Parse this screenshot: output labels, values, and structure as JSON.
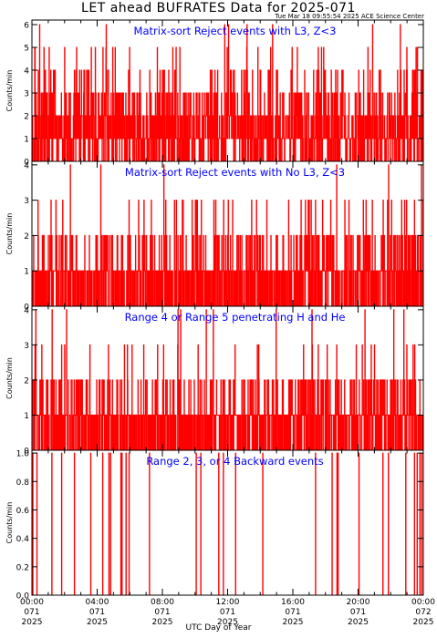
{
  "title": "LET ahead BUFRATES Data for 2025-071",
  "timestamp": "Tue Mar 18 09:55:54 2025 ACE Science Center",
  "xlabel": "UTC Day of Year",
  "colors": {
    "series": "#ff0000",
    "panel_title": "#0000ff",
    "axes": "#000000"
  },
  "chart_data": [
    {
      "type": "line",
      "title": "Matrix-sort Reject events with L3, Z<3",
      "ylabel": "Counts/min",
      "ylim": [
        0,
        6.2
      ],
      "yticks": [
        0,
        1,
        2,
        3,
        4,
        5,
        6
      ],
      "ytick_labels": [
        "0",
        "1",
        "2",
        "3",
        "4",
        "5",
        "6"
      ],
      "xlim": [
        0,
        1440
      ],
      "series": [
        {
          "x_step_minutes": 1,
          "distribution": {
            "0": 0.25,
            "1": 0.33,
            "2": 0.22,
            "3": 0.13,
            "4": 0.05,
            "5": 0.015,
            "6": 0.005
          }
        }
      ]
    },
    {
      "type": "line",
      "title": "Matrix-sort Reject events with No L3, Z<3",
      "ylabel": "Counts/min",
      "ylim": [
        0,
        4.1
      ],
      "yticks": [
        0,
        1,
        2,
        3,
        4
      ],
      "ytick_labels": [
        "0",
        "1",
        "2",
        "3",
        "4"
      ],
      "xlim": [
        0,
        1440
      ],
      "series": [
        {
          "x_step_minutes": 1,
          "distribution": {
            "0": 0.45,
            "1": 0.37,
            "2": 0.14,
            "3": 0.035,
            "4": 0.005
          }
        }
      ]
    },
    {
      "type": "line",
      "title": "Range 4 or Range 5 penetrating H and He",
      "ylabel": "Counts/min",
      "ylim": [
        0,
        4.1
      ],
      "yticks": [
        0,
        1,
        2,
        3,
        4
      ],
      "ytick_labels": [
        "0",
        "1",
        "2",
        "3",
        "4"
      ],
      "xlim": [
        0,
        1440
      ],
      "series": [
        {
          "x_step_minutes": 1,
          "distribution": {
            "0": 0.42,
            "1": 0.42,
            "2": 0.13,
            "3": 0.025,
            "4": 0.005
          }
        }
      ]
    },
    {
      "type": "line",
      "title": "Range 2, 3, or 4 Backward events",
      "ylabel": "Counts/min",
      "ylim": [
        0,
        1.02
      ],
      "yticks": [
        0,
        0.2,
        0.4,
        0.6,
        0.8,
        1.0
      ],
      "ytick_labels": [
        "0.0",
        "0.2",
        "0.4",
        "0.6",
        "0.8",
        "1.0"
      ],
      "xlim": [
        0,
        1440
      ],
      "series": [
        {
          "x_step_minutes": 1,
          "distribution": {
            "0": 0.975,
            "1": 0.025
          }
        }
      ]
    }
  ],
  "xticks": [
    {
      "minute": 0,
      "time": "00:00",
      "doy": "071",
      "year": "2025"
    },
    {
      "minute": 240,
      "time": "04:00",
      "doy": "071",
      "year": "2025"
    },
    {
      "minute": 480,
      "time": "08:00",
      "doy": "071",
      "year": "2025"
    },
    {
      "minute": 720,
      "time": "12:00",
      "doy": "071",
      "year": "2025"
    },
    {
      "minute": 960,
      "time": "16:00",
      "doy": "071",
      "year": "2025"
    },
    {
      "minute": 1200,
      "time": "20:00",
      "doy": "071",
      "year": "2025"
    },
    {
      "minute": 1440,
      "time": "00:00",
      "doy": "072",
      "year": "2025"
    }
  ]
}
